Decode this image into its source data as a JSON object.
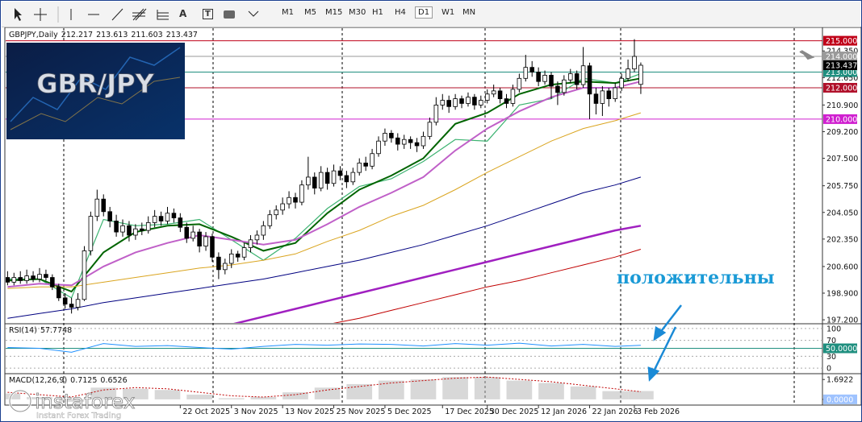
{
  "toolbar": {
    "text_tools": [
      "A",
      "T"
    ],
    "timeframes": [
      "M1",
      "M5",
      "M15",
      "M30",
      "H1",
      "H4",
      "D1",
      "W1",
      "MN"
    ]
  },
  "logo_text": "GBR/JPY",
  "annotation": "положительны",
  "watermark": {
    "brand": "instaforex",
    "tagline": "Instant Forex Trading"
  },
  "chart_data": {
    "type": "candlestick",
    "title": "GBPJPY,Daily",
    "ohlc": [
      [
        199.9,
        200.3,
        199.4,
        199.6
      ],
      [
        199.6,
        200.2,
        199.4,
        199.9
      ],
      [
        199.9,
        200.3,
        199.5,
        199.7
      ],
      [
        199.7,
        200.4,
        199.5,
        200.0
      ],
      [
        200.0,
        200.3,
        199.6,
        199.8
      ],
      [
        199.8,
        200.5,
        199.6,
        200.1
      ],
      [
        200.1,
        200.4,
        199.7,
        199.9
      ],
      [
        199.9,
        200.1,
        199.1,
        199.3
      ],
      [
        199.3,
        199.5,
        198.4,
        198.6
      ],
      [
        198.6,
        198.9,
        197.9,
        198.2
      ],
      [
        198.2,
        198.6,
        197.6,
        198.0
      ],
      [
        198.0,
        198.9,
        197.8,
        198.5
      ],
      [
        198.5,
        201.9,
        198.4,
        201.6
      ],
      [
        201.6,
        204.1,
        201.3,
        203.8
      ],
      [
        203.8,
        205.5,
        203.5,
        204.9
      ],
      [
        204.9,
        205.2,
        203.8,
        204.1
      ],
      [
        204.1,
        204.4,
        203.1,
        203.5
      ],
      [
        203.5,
        203.9,
        202.5,
        202.8
      ],
      [
        202.8,
        203.6,
        202.5,
        203.2
      ],
      [
        203.2,
        203.5,
        202.2,
        202.6
      ],
      [
        202.6,
        203.3,
        202.3,
        203.0
      ],
      [
        203.0,
        203.4,
        202.6,
        202.9
      ],
      [
        202.9,
        203.8,
        202.7,
        203.4
      ],
      [
        203.4,
        204.2,
        203.1,
        203.8
      ],
      [
        203.8,
        204.1,
        203.2,
        203.5
      ],
      [
        203.5,
        204.4,
        203.3,
        204.0
      ],
      [
        204.0,
        204.3,
        203.4,
        203.7
      ],
      [
        203.7,
        204.0,
        202.8,
        203.1
      ],
      [
        203.1,
        203.4,
        202.1,
        202.4
      ],
      [
        202.4,
        203.2,
        202.2,
        202.8
      ],
      [
        202.8,
        203.0,
        201.5,
        201.9
      ],
      [
        201.9,
        202.8,
        201.6,
        202.5
      ],
      [
        202.5,
        202.7,
        200.9,
        201.2
      ],
      [
        201.2,
        201.5,
        199.8,
        200.4
      ],
      [
        200.4,
        201.1,
        200.1,
        200.8
      ],
      [
        200.8,
        201.7,
        200.5,
        201.4
      ],
      [
        201.4,
        201.6,
        200.9,
        201.2
      ],
      [
        201.2,
        202.1,
        201.0,
        201.8
      ],
      [
        201.8,
        202.6,
        201.5,
        202.3
      ],
      [
        202.3,
        202.9,
        202.0,
        202.6
      ],
      [
        202.6,
        203.5,
        202.3,
        203.2
      ],
      [
        203.2,
        204.2,
        203.0,
        203.9
      ],
      [
        203.9,
        204.5,
        203.6,
        204.2
      ],
      [
        204.2,
        205.0,
        203.9,
        204.6
      ],
      [
        204.6,
        205.4,
        204.3,
        205.0
      ],
      [
        205.0,
        205.3,
        204.3,
        204.7
      ],
      [
        204.7,
        206.1,
        204.5,
        205.8
      ],
      [
        205.8,
        207.6,
        205.5,
        206.3
      ],
      [
        206.3,
        206.6,
        205.2,
        205.6
      ],
      [
        205.6,
        207.0,
        205.4,
        206.6
      ],
      [
        206.6,
        206.9,
        205.5,
        205.9
      ],
      [
        205.9,
        207.1,
        205.7,
        206.7
      ],
      [
        206.7,
        207.0,
        206.1,
        206.4
      ],
      [
        206.4,
        206.7,
        205.6,
        206.0
      ],
      [
        206.0,
        206.9,
        205.8,
        206.6
      ],
      [
        206.6,
        207.5,
        206.4,
        207.2
      ],
      [
        207.2,
        207.6,
        206.7,
        207.0
      ],
      [
        207.0,
        208.1,
        206.8,
        207.8
      ],
      [
        207.8,
        208.9,
        207.6,
        208.6
      ],
      [
        208.6,
        209.4,
        208.3,
        209.1
      ],
      [
        209.1,
        209.3,
        208.5,
        208.8
      ],
      [
        208.8,
        209.1,
        208.0,
        208.4
      ],
      [
        208.4,
        209.0,
        208.1,
        208.7
      ],
      [
        208.7,
        208.9,
        208.1,
        208.5
      ],
      [
        208.5,
        208.8,
        207.9,
        208.3
      ],
      [
        208.3,
        209.2,
        208.1,
        208.9
      ],
      [
        208.9,
        210.1,
        208.7,
        209.8
      ],
      [
        209.8,
        211.4,
        209.6,
        210.9
      ],
      [
        210.9,
        211.6,
        210.6,
        211.2
      ],
      [
        211.2,
        211.5,
        210.4,
        210.8
      ],
      [
        210.8,
        211.6,
        210.6,
        211.3
      ],
      [
        211.3,
        211.5,
        210.7,
        211.0
      ],
      [
        211.0,
        211.7,
        210.8,
        211.4
      ],
      [
        211.4,
        211.6,
        210.6,
        210.9
      ],
      [
        210.9,
        211.5,
        210.7,
        211.2
      ],
      [
        211.2,
        211.9,
        211.0,
        211.6
      ],
      [
        211.6,
        212.2,
        211.4,
        211.8
      ],
      [
        211.8,
        212.0,
        211.0,
        211.3
      ],
      [
        211.3,
        211.6,
        210.7,
        211.0
      ],
      [
        211.0,
        212.2,
        210.8,
        211.9
      ],
      [
        211.9,
        212.9,
        211.7,
        212.6
      ],
      [
        212.6,
        214.1,
        212.4,
        213.3
      ],
      [
        213.3,
        213.7,
        212.7,
        213.0
      ],
      [
        213.0,
        213.3,
        212.1,
        212.4
      ],
      [
        212.4,
        213.1,
        212.2,
        212.8
      ],
      [
        212.8,
        213.0,
        211.3,
        212.1
      ],
      [
        212.1,
        212.4,
        210.9,
        211.7
      ],
      [
        211.7,
        212.8,
        211.5,
        212.5
      ],
      [
        212.5,
        213.2,
        212.3,
        212.9
      ],
      [
        212.9,
        213.1,
        211.9,
        212.2
      ],
      [
        212.2,
        214.6,
        212.0,
        213.4
      ],
      [
        213.4,
        213.6,
        210.0,
        211.6
      ],
      [
        211.6,
        212.0,
        210.3,
        211.0
      ],
      [
        211.0,
        212.1,
        210.2,
        211.8
      ],
      [
        211.8,
        212.0,
        210.8,
        211.3
      ],
      [
        211.3,
        212.3,
        211.1,
        212.0
      ],
      [
        212.0,
        212.9,
        211.8,
        212.6
      ],
      [
        212.6,
        213.8,
        212.4,
        213.2
      ],
      [
        213.2,
        215.1,
        213.0,
        214.0
      ],
      [
        212.217,
        213.613,
        211.603,
        213.437
      ]
    ],
    "xlim": [
      -0.3,
      127.4
    ],
    "xticks": [
      {
        "value": 27,
        "label": "22 Oct 2025"
      },
      {
        "value": 35,
        "label": "3 Nov 2025"
      },
      {
        "value": 43,
        "label": "13 Nov 2025"
      },
      {
        "value": 51,
        "label": "25 Nov 2025"
      },
      {
        "value": 59,
        "label": "5 Dec 2025"
      },
      {
        "value": 68,
        "label": "17 Dec 2025"
      },
      {
        "value": 75,
        "label": "30 Dec 2025"
      },
      {
        "value": 83,
        "label": "12 Jan 2026"
      },
      {
        "value": 91,
        "label": "22 Jan 2026"
      },
      {
        "value": 98,
        "label": "3 Feb 2026"
      }
    ],
    "ylim": [
      197.0,
      215.8
    ],
    "yticks": [
      {
        "value": 214.35,
        "label": "214.350"
      },
      {
        "value": 212.65,
        "label": "212.650"
      },
      {
        "value": 210.9,
        "label": "210.900"
      },
      {
        "value": 209.2,
        "label": "209.200"
      },
      {
        "value": 207.5,
        "label": "207.500"
      },
      {
        "value": 205.75,
        "label": "205.750"
      },
      {
        "value": 204.05,
        "label": "204.050"
      },
      {
        "value": 202.35,
        "label": "202.350"
      },
      {
        "value": 200.6,
        "label": "200.600"
      },
      {
        "value": 198.9,
        "label": "198.900"
      },
      {
        "value": 197.2,
        "label": "197.200"
      }
    ],
    "levels": [
      {
        "value": 215,
        "label": "215.000",
        "color": "#c00018"
      },
      {
        "value": 214,
        "label": "214.000",
        "color": "#9a9a9a"
      },
      {
        "value": 213,
        "label": "213.000",
        "color": "#1f8f7f"
      },
      {
        "value": 212,
        "label": "212.000",
        "color": "#b0102a"
      },
      {
        "value": 210,
        "label": "210.000",
        "color": "#d020d0"
      }
    ],
    "overlays": [
      {
        "color": "#3cb371",
        "width": 1.2,
        "x": [
          0,
          5,
          10,
          15,
          20,
          25,
          30,
          35,
          40,
          45,
          50,
          55,
          60,
          65,
          70,
          75,
          80,
          85,
          90,
          95,
          99
        ],
        "values": [
          199.8,
          199.8,
          198.6,
          203.6,
          203.2,
          203.3,
          203.6,
          202.3,
          201.0,
          202.4,
          204.3,
          205.7,
          206.2,
          207.3,
          208.7,
          208.6,
          210.9,
          211.3,
          212.6,
          212.3,
          212.9
        ]
      },
      {
        "color": "#006400",
        "width": 2,
        "x": [
          0,
          5,
          10,
          15,
          20,
          25,
          30,
          35,
          40,
          45,
          50,
          55,
          60,
          65,
          70,
          75,
          80,
          85,
          90,
          95,
          99
        ],
        "values": [
          199.7,
          199.8,
          199.0,
          201.5,
          202.8,
          203.2,
          203.3,
          202.5,
          201.6,
          202.1,
          204.0,
          205.5,
          206.4,
          207.5,
          209.7,
          210.4,
          211.6,
          212.2,
          212.4,
          212.3,
          212.6
        ]
      },
      {
        "color": "#c060c8",
        "width": 2,
        "x": [
          0,
          5,
          10,
          15,
          20,
          25,
          30,
          35,
          40,
          45,
          50,
          55,
          60,
          65,
          70,
          75,
          80,
          85,
          90,
          95,
          99
        ],
        "values": [
          199.3,
          199.5,
          199.4,
          200.6,
          201.5,
          202.1,
          202.6,
          202.3,
          202.0,
          202.3,
          203.3,
          204.4,
          205.3,
          206.3,
          208.0,
          209.4,
          210.5,
          211.4,
          212.0,
          212.0,
          212.4
        ]
      },
      {
        "color": "#daa520",
        "width": 1,
        "x": [
          0,
          5,
          10,
          15,
          20,
          25,
          30,
          35,
          40,
          45,
          50,
          55,
          60,
          65,
          70,
          75,
          80,
          85,
          90,
          95,
          99
        ],
        "values": [
          199.2,
          199.3,
          199.3,
          199.6,
          199.9,
          200.2,
          200.5,
          200.7,
          201.0,
          201.4,
          202.2,
          202.9,
          203.8,
          204.5,
          205.5,
          206.6,
          207.6,
          208.6,
          209.4,
          209.9,
          210.4
        ]
      },
      {
        "color": "#000080",
        "width": 1,
        "x": [
          0,
          5,
          10,
          15,
          20,
          25,
          30,
          35,
          40,
          45,
          50,
          55,
          60,
          65,
          70,
          75,
          80,
          85,
          90,
          95,
          99
        ],
        "values": [
          197.3,
          197.6,
          197.9,
          198.3,
          198.6,
          198.9,
          199.2,
          199.5,
          199.8,
          200.2,
          200.6,
          201.0,
          201.5,
          202.0,
          202.6,
          203.2,
          203.9,
          204.6,
          205.3,
          205.8,
          206.3
        ]
      },
      {
        "color": "#a020c0",
        "width": 2.5,
        "x": [
          0,
          5,
          10,
          15,
          20,
          25,
          30,
          35,
          40,
          45,
          50,
          55,
          60,
          65,
          70,
          75,
          80,
          85,
          90,
          95,
          99
        ],
        "values": [
          193.4,
          193.9,
          194.4,
          194.9,
          195.4,
          195.9,
          196.4,
          196.9,
          197.4,
          197.9,
          198.4,
          198.9,
          199.4,
          199.9,
          200.4,
          200.9,
          201.4,
          201.9,
          202.4,
          202.9,
          203.2
        ]
      },
      {
        "color": "#c00000",
        "width": 1,
        "x": [
          0,
          5,
          10,
          15,
          20,
          25,
          30,
          35,
          40,
          45,
          50,
          55,
          60,
          65,
          70,
          75,
          80,
          85,
          90,
          95,
          99
        ],
        "values": [
          192.1,
          192.6,
          193.0,
          193.5,
          194.0,
          194.5,
          194.9,
          195.4,
          195.9,
          196.4,
          196.9,
          197.3,
          197.8,
          198.3,
          198.8,
          199.3,
          199.7,
          200.2,
          200.7,
          201.2,
          201.7
        ]
      }
    ],
    "rsi": {
      "title": "RSI(14)",
      "color": "#1e90ff",
      "ylim": [
        -10,
        108
      ],
      "yticks": [
        100,
        70,
        {
          "value": 50,
          "label": "50.0000"
        },
        30,
        0
      ],
      "x": [
        0,
        5,
        10,
        15,
        20,
        25,
        30,
        35,
        40,
        45,
        50,
        55,
        60,
        65,
        70,
        75,
        80,
        85,
        90,
        95,
        99
      ],
      "values": [
        52,
        50,
        40,
        62,
        55,
        57,
        52,
        48,
        55,
        60,
        58,
        61,
        60,
        56,
        62,
        58,
        63,
        56,
        60,
        55,
        57.7748
      ]
    },
    "macd": {
      "title": "MACD(12,26,9)",
      "ylim": [
        -0.35,
        2.05
      ],
      "yticks": [
        {
          "value": 1.6922,
          "label": "1.6922"
        },
        {
          "value": 0,
          "label": "0.0000"
        }
      ],
      "x": [
        0,
        5,
        10,
        15,
        20,
        25,
        30,
        35,
        40,
        45,
        50,
        55,
        60,
        65,
        70,
        75,
        80,
        85,
        90,
        95,
        99
      ],
      "series": [
        {
          "color": "#b8b8b8",
          "values": [
            0.5,
            0.2,
            -0.2,
            1.0,
            0.9,
            0.8,
            0.4,
            0.1,
            0.2,
            0.6,
            1.0,
            1.3,
            1.6,
            1.7,
            1.9,
            1.9,
            1.6,
            1.4,
            1.1,
            0.7,
            0.7125
          ]
        },
        {
          "color": "#c00000",
          "values": [
            0.6,
            0.4,
            0.2,
            0.8,
            1.0,
            0.9,
            0.6,
            0.3,
            0.2,
            0.4,
            0.8,
            1.1,
            1.4,
            1.6,
            1.8,
            1.9,
            1.7,
            1.5,
            1.2,
            0.9,
            0.6526
          ]
        }
      ]
    }
  }
}
